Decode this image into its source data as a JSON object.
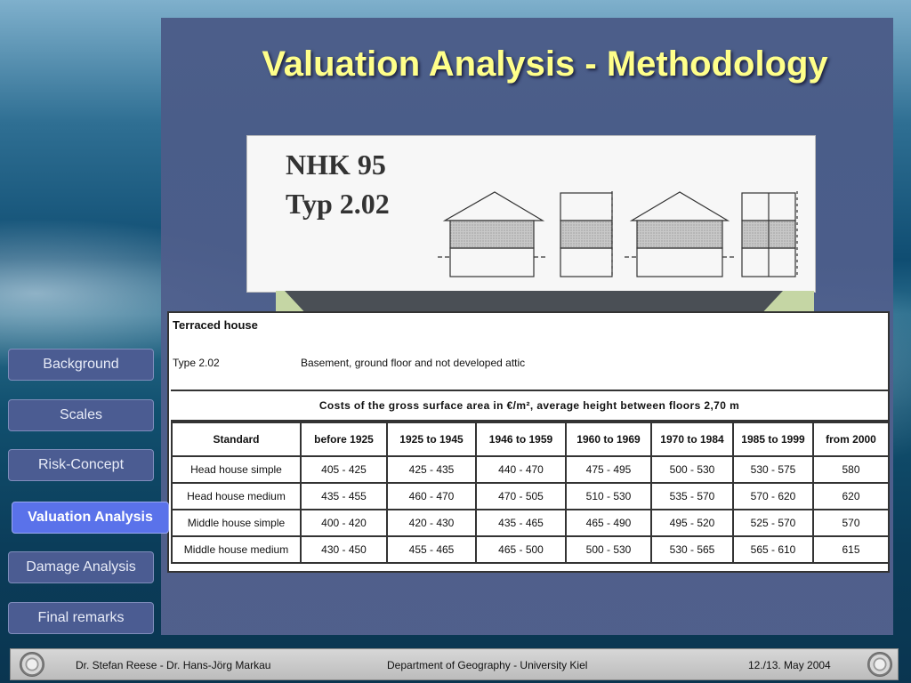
{
  "slide": {
    "title": "Valuation Analysis - Methodology"
  },
  "diagram": {
    "line1": "NHK 95",
    "line2": "Typ 2.02"
  },
  "table": {
    "house_type": "Terraced house",
    "type_code": "Type 2.02",
    "type_desc": "Basement, ground floor and not developed attic",
    "costs_title": "Costs of the gross surface area in €/m², average height between floors 2,70 m",
    "columns": [
      "Standard",
      "before 1925",
      "1925 to 1945",
      "1946 to 1959",
      "1960 to 1969",
      "1970 to 1984",
      "1985 to 1999",
      "from 2000"
    ],
    "rows": [
      [
        "Head house simple",
        "405 - 425",
        "425 - 435",
        "440 - 470",
        "475 - 495",
        "500 - 530",
        "530 - 575",
        "580"
      ],
      [
        "Head house medium",
        "435 - 455",
        "460 - 470",
        "470 - 505",
        "510 - 530",
        "535 - 570",
        "570 - 620",
        "620"
      ],
      [
        "Middle house simple",
        "400 - 420",
        "420 - 430",
        "435 - 465",
        "465 - 490",
        "495 - 520",
        "525 - 570",
        "570"
      ],
      [
        "Middle house medium",
        "430 - 450",
        "455 - 465",
        "465 - 500",
        "500 - 530",
        "530 - 565",
        "565 - 610",
        "615"
      ]
    ]
  },
  "nav": {
    "items": [
      {
        "label": "Background"
      },
      {
        "label": "Scales"
      },
      {
        "label": "Risk-Concept"
      },
      {
        "label": "Valuation Analysis"
      },
      {
        "label": "Damage Analysis"
      },
      {
        "label": "Final remarks"
      }
    ],
    "active_index": 3
  },
  "footer": {
    "authors": "Dr. Stefan Reese - Dr. Hans-Jörg Markau",
    "department": "Department of Geography - University Kiel",
    "date": "12./13. May 2004"
  },
  "colors": {
    "title": "#ffff8a",
    "panel": "#4f5e8c",
    "nav_button": "#4b5c92",
    "nav_active": "#5a72ea"
  }
}
